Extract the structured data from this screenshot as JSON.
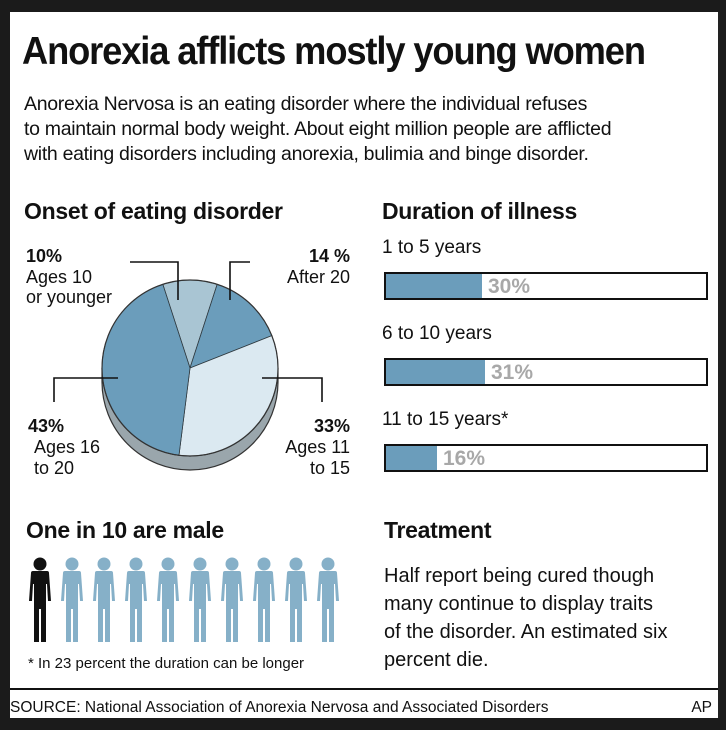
{
  "title": "Anorexia afflicts mostly young women",
  "intro_lines": [
    "Anorexia Nervosa is an eating disorder where the individual refuses",
    "to maintain normal body weight. About eight million people are afflicted",
    "with eating disorders including anorexia, bulimia and binge disorder."
  ],
  "onset_heading": "Onset of eating disorder",
  "duration_heading": "Duration of illness",
  "male_heading": "One in 10 are male",
  "treatment_heading": "Treatment",
  "treatment_lines": [
    "Half report being cured though",
    "many continue to display traits",
    "of the disorder. An estimated six",
    "percent die."
  ],
  "footnote": "* In 23 percent the duration can be longer",
  "source": "SOURCE: National Association of Anorexia Nervosa and Associated Disorders",
  "credit": "AP",
  "colors": {
    "pie_dark": "#6b9dbb",
    "pie_medium": "#a9c5d3",
    "pie_light": "#dbe9f1",
    "pie_side": "#9aa6ac",
    "bar_fill": "#6b9dbb",
    "figure_male": "#111111",
    "figure_female": "#86b0c8"
  },
  "people": {
    "total": 10,
    "male": 1
  },
  "chart_data": [
    {
      "type": "pie",
      "title": "Onset of eating disorder",
      "slices": [
        {
          "pct_label": "10%",
          "label_lines": [
            "Ages 10",
            "or younger"
          ],
          "value": 10,
          "shade": "medium"
        },
        {
          "pct_label": "14 %",
          "label_lines": [
            "After 20"
          ],
          "value": 14,
          "shade": "dark"
        },
        {
          "pct_label": "33%",
          "label_lines": [
            "Ages 11",
            "to 15"
          ],
          "value": 33,
          "shade": "light"
        },
        {
          "pct_label": "43%",
          "label_lines": [
            "Ages 16",
            "to 20"
          ],
          "value": 43,
          "shade": "dark"
        }
      ]
    },
    {
      "type": "bar",
      "title": "Duration of illness",
      "orientation": "horizontal",
      "categories": [
        "1 to 5 years",
        "6 to 10 years",
        "11 to 15 years*"
      ],
      "values": [
        30,
        31,
        16
      ],
      "value_labels": [
        "30%",
        "31%",
        "16%"
      ],
      "xlim": [
        0,
        100
      ]
    }
  ]
}
